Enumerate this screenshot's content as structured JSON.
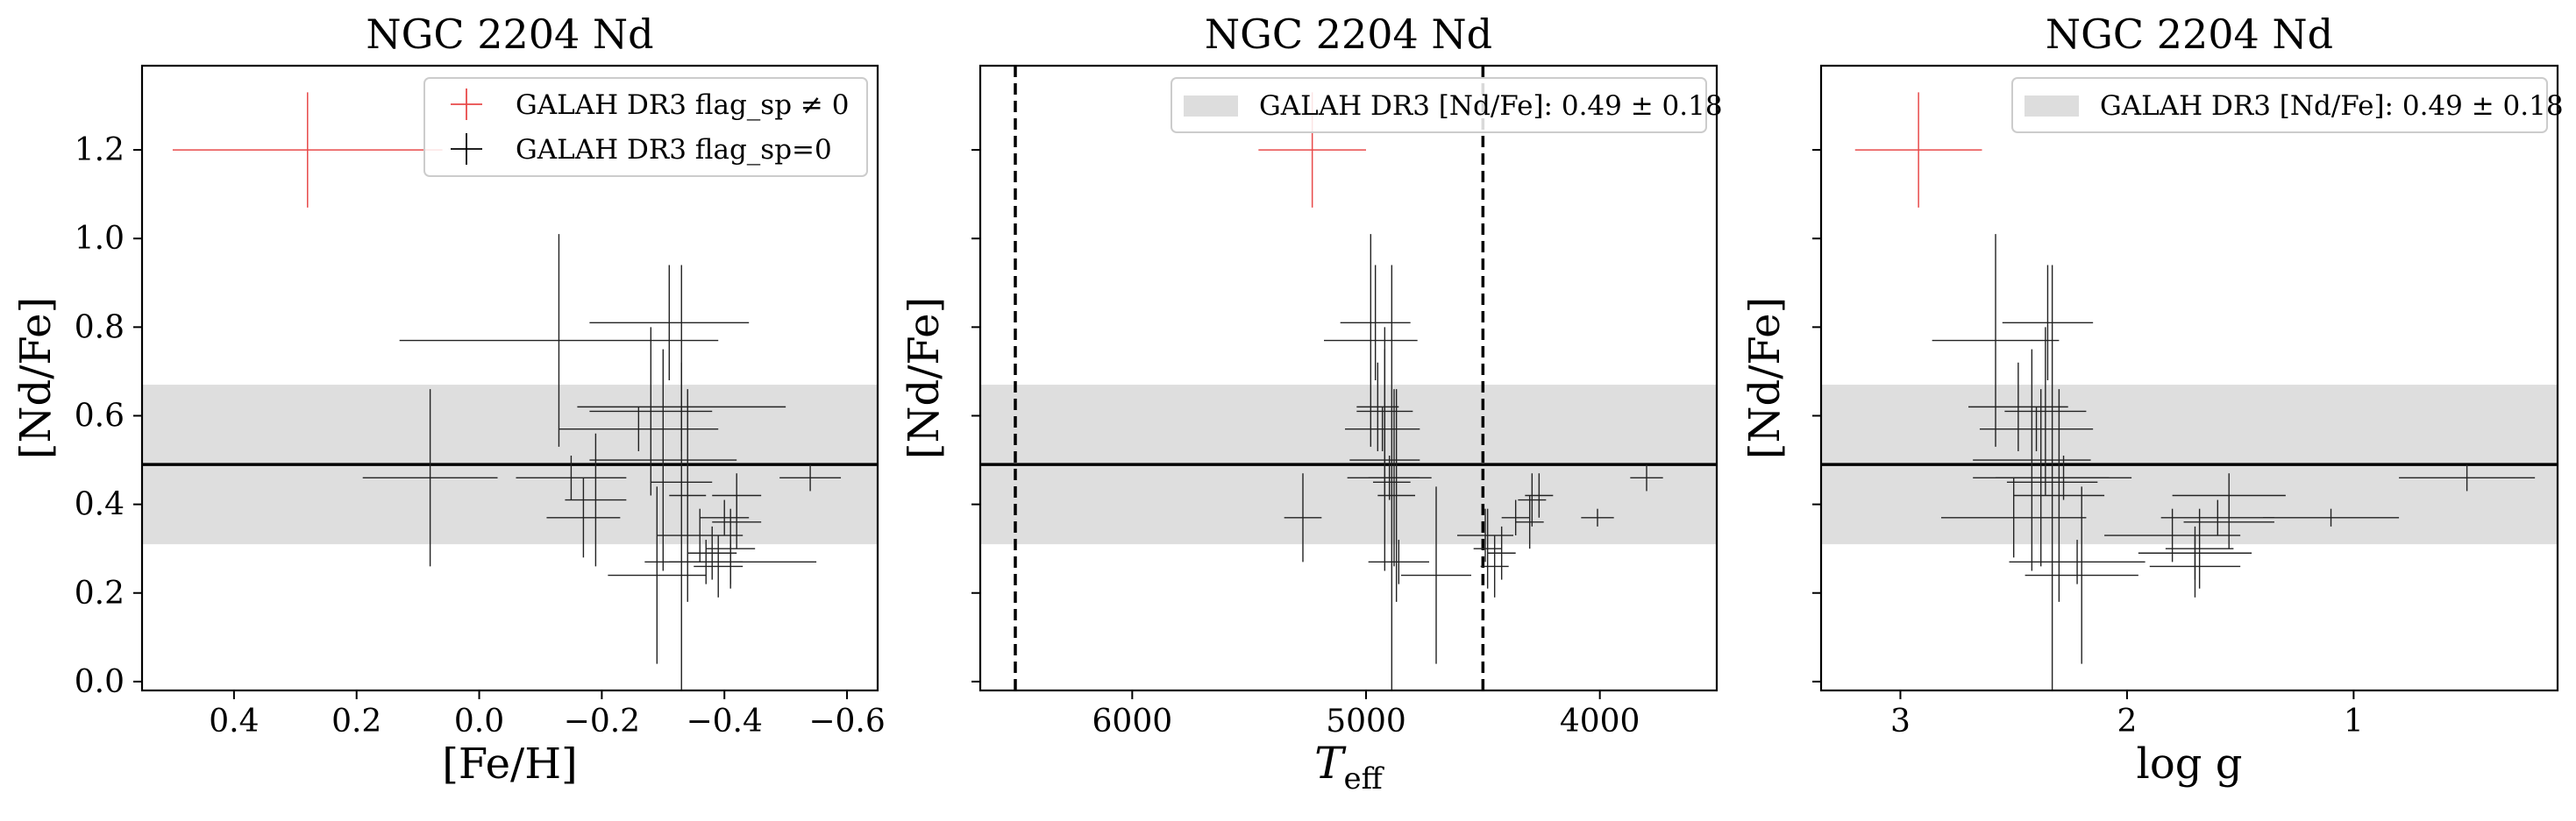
{
  "chart_data": [
    {
      "type": "errorbar-scatter",
      "title": "NGC 2204 Nd",
      "xlabel": "[Fe/H]",
      "ylabel": "[Nd/Fe]",
      "xlim": [
        0.55,
        -0.65
      ],
      "ylim": [
        -0.02,
        1.39
      ],
      "xticks": [
        0.4,
        0.2,
        0.0,
        -0.2,
        -0.4,
        -0.6
      ],
      "xtick_labels": [
        "0.4",
        "0.2",
        "0.0",
        "−0.2",
        "−0.4",
        "−0.6"
      ],
      "yticks": [
        0.0,
        0.2,
        0.4,
        0.6,
        0.8,
        1.0,
        1.2
      ],
      "ytick_labels": [
        "0.0",
        "0.2",
        "0.4",
        "0.6",
        "0.8",
        "1.0",
        "1.2"
      ],
      "show_ytick_labels": true,
      "band": {
        "center": 0.49,
        "sigma": 0.18
      },
      "legend": {
        "position": "top-right",
        "entries": [
          {
            "label": "GALAH DR3 flag_sp ≠ 0",
            "style": "cross",
            "color": "#e84a4a"
          },
          {
            "label": "GALAH DR3 flag_sp=0",
            "style": "cross",
            "color": "#000000"
          }
        ]
      },
      "flagged_points": [
        {
          "x": 0.28,
          "y": 1.2,
          "xerr": 0.22,
          "yerr": 0.13
        }
      ],
      "points": [
        {
          "x": 0.08,
          "y": 0.46,
          "xerr": 0.11,
          "yerr": 0.2
        },
        {
          "x": -0.13,
          "y": 0.77,
          "xerr": 0.26,
          "yerr": 0.24
        },
        {
          "x": -0.15,
          "y": 0.46,
          "xerr": 0.09,
          "yerr": 0.05
        },
        {
          "x": -0.17,
          "y": 0.37,
          "xerr": 0.06,
          "yerr": 0.09
        },
        {
          "x": -0.19,
          "y": 0.41,
          "xerr": 0.05,
          "yerr": 0.15
        },
        {
          "x": -0.26,
          "y": 0.57,
          "xerr": 0.13,
          "yerr": 0.05
        },
        {
          "x": -0.28,
          "y": 0.61,
          "xerr": 0.1,
          "yerr": 0.19
        },
        {
          "x": -0.31,
          "y": 0.81,
          "xerr": 0.13,
          "yerr": 0.13
        },
        {
          "x": -0.33,
          "y": 0.62,
          "xerr": 0.17,
          "yerr": 0.1
        },
        {
          "x": -0.3,
          "y": 0.5,
          "xerr": 0.12,
          "yerr": 0.25
        },
        {
          "x": -0.29,
          "y": 0.24,
          "xerr": 0.08,
          "yerr": 0.2
        },
        {
          "x": -0.33,
          "y": 0.45,
          "xerr": 0.05,
          "yerr": 0.49
        },
        {
          "x": -0.34,
          "y": 0.42,
          "xerr": 0.03,
          "yerr": 0.24
        },
        {
          "x": -0.37,
          "y": 0.27,
          "xerr": 0.06,
          "yerr": 0.05
        },
        {
          "x": -0.36,
          "y": 0.33,
          "xerr": 0.07,
          "yerr": 0.06
        },
        {
          "x": -0.38,
          "y": 0.29,
          "xerr": 0.04,
          "yerr": 0.06
        },
        {
          "x": -0.39,
          "y": 0.26,
          "xerr": 0.04,
          "yerr": 0.07
        },
        {
          "x": -0.4,
          "y": 0.37,
          "xerr": 0.04,
          "yerr": 0.04
        },
        {
          "x": -0.41,
          "y": 0.3,
          "xerr": 0.04,
          "yerr": 0.09
        },
        {
          "x": -0.42,
          "y": 0.36,
          "xerr": 0.04,
          "yerr": 0.06
        },
        {
          "x": -0.42,
          "y": 0.42,
          "xerr": 0.04,
          "yerr": 0.05
        },
        {
          "x": -0.41,
          "y": 0.27,
          "xerr": 0.14,
          "yerr": 0.05
        },
        {
          "x": -0.54,
          "y": 0.46,
          "xerr": 0.05,
          "yerr": 0.03
        }
      ]
    },
    {
      "type": "errorbar-scatter",
      "title": "NGC 2204 Nd",
      "xlabel": "T_eff",
      "ylabel": "[Nd/Fe]",
      "xlim": [
        6650,
        3500
      ],
      "ylim": [
        -0.02,
        1.39
      ],
      "xticks": [
        6000,
        5000,
        4000
      ],
      "xtick_labels": [
        "6000",
        "5000",
        "4000"
      ],
      "yticks": [
        0.0,
        0.2,
        0.4,
        0.6,
        0.8,
        1.0,
        1.2
      ],
      "ytick_labels": [
        "0.0",
        "0.2",
        "0.4",
        "0.6",
        "0.8",
        "1.0",
        "1.2"
      ],
      "show_ytick_labels": false,
      "vlines": [
        6500,
        4500
      ],
      "band": {
        "center": 0.49,
        "sigma": 0.18
      },
      "legend": {
        "position": "top-right",
        "entries": [
          {
            "label": "GALAH DR3 [Nd/Fe]: 0.49 ± 0.18",
            "style": "patch",
            "color": "#dddddd"
          }
        ]
      },
      "flagged_points": [
        {
          "x": 5230,
          "y": 1.2,
          "xerr": 230,
          "yerr": 0.13
        }
      ],
      "points": [
        {
          "x": 5270,
          "y": 0.37,
          "xerr": 80,
          "yerr": 0.1
        },
        {
          "x": 4980,
          "y": 0.77,
          "xerr": 200,
          "yerr": 0.24
        },
        {
          "x": 4960,
          "y": 0.81,
          "xerr": 150,
          "yerr": 0.13
        },
        {
          "x": 4950,
          "y": 0.62,
          "xerr": 90,
          "yerr": 0.1
        },
        {
          "x": 4930,
          "y": 0.57,
          "xerr": 160,
          "yerr": 0.05
        },
        {
          "x": 4920,
          "y": 0.5,
          "xerr": 150,
          "yerr": 0.25
        },
        {
          "x": 4920,
          "y": 0.61,
          "xerr": 120,
          "yerr": 0.19
        },
        {
          "x": 4900,
          "y": 0.46,
          "xerr": 180,
          "yerr": 0.05
        },
        {
          "x": 4890,
          "y": 0.45,
          "xerr": 80,
          "yerr": 0.49
        },
        {
          "x": 4880,
          "y": 0.46,
          "xerr": 110,
          "yerr": 0.2
        },
        {
          "x": 4870,
          "y": 0.42,
          "xerr": 80,
          "yerr": 0.24
        },
        {
          "x": 4860,
          "y": 0.27,
          "xerr": 130,
          "yerr": 0.05
        },
        {
          "x": 4700,
          "y": 0.24,
          "xerr": 150,
          "yerr": 0.2
        },
        {
          "x": 4490,
          "y": 0.33,
          "xerr": 120,
          "yerr": 0.06
        },
        {
          "x": 4480,
          "y": 0.3,
          "xerr": 60,
          "yerr": 0.09
        },
        {
          "x": 4450,
          "y": 0.26,
          "xerr": 60,
          "yerr": 0.07
        },
        {
          "x": 4420,
          "y": 0.29,
          "xerr": 60,
          "yerr": 0.06
        },
        {
          "x": 4360,
          "y": 0.37,
          "xerr": 60,
          "yerr": 0.04
        },
        {
          "x": 4300,
          "y": 0.36,
          "xerr": 60,
          "yerr": 0.06
        },
        {
          "x": 4290,
          "y": 0.41,
          "xerr": 60,
          "yerr": 0.06
        },
        {
          "x": 4260,
          "y": 0.42,
          "xerr": 60,
          "yerr": 0.05
        },
        {
          "x": 4010,
          "y": 0.37,
          "xerr": 70,
          "yerr": 0.02
        },
        {
          "x": 3800,
          "y": 0.46,
          "xerr": 70,
          "yerr": 0.03
        }
      ]
    },
    {
      "type": "errorbar-scatter",
      "title": "NGC 2204 Nd",
      "xlabel": "log g",
      "ylabel": "[Nd/Fe]",
      "xlim": [
        3.35,
        0.1
      ],
      "ylim": [
        -0.02,
        1.39
      ],
      "xticks": [
        3,
        2,
        1
      ],
      "xtick_labels": [
        "3",
        "2",
        "1"
      ],
      "yticks": [
        0.0,
        0.2,
        0.4,
        0.6,
        0.8,
        1.0,
        1.2
      ],
      "ytick_labels": [
        "0.0",
        "0.2",
        "0.4",
        "0.6",
        "0.8",
        "1.0",
        "1.2"
      ],
      "show_ytick_labels": false,
      "band": {
        "center": 0.49,
        "sigma": 0.18
      },
      "legend": {
        "position": "top-right",
        "entries": [
          {
            "label": "GALAH DR3 [Nd/Fe]: 0.49 ± 0.18",
            "style": "patch",
            "color": "#dddddd"
          }
        ]
      },
      "flagged_points": [
        {
          "x": 2.92,
          "y": 1.2,
          "xerr": 0.28,
          "yerr": 0.13
        }
      ],
      "points": [
        {
          "x": 2.58,
          "y": 0.77,
          "xerr": 0.28,
          "yerr": 0.24
        },
        {
          "x": 2.5,
          "y": 0.37,
          "xerr": 0.32,
          "yerr": 0.09
        },
        {
          "x": 2.48,
          "y": 0.62,
          "xerr": 0.22,
          "yerr": 0.1
        },
        {
          "x": 2.42,
          "y": 0.5,
          "xerr": 0.26,
          "yerr": 0.25
        },
        {
          "x": 2.4,
          "y": 0.57,
          "xerr": 0.25,
          "yerr": 0.05
        },
        {
          "x": 2.38,
          "y": 0.46,
          "xerr": 0.3,
          "yerr": 0.2
        },
        {
          "x": 2.36,
          "y": 0.61,
          "xerr": 0.18,
          "yerr": 0.19
        },
        {
          "x": 2.35,
          "y": 0.81,
          "xerr": 0.2,
          "yerr": 0.13
        },
        {
          "x": 2.33,
          "y": 0.45,
          "xerr": 0.2,
          "yerr": 0.49
        },
        {
          "x": 2.3,
          "y": 0.42,
          "xerr": 0.2,
          "yerr": 0.24
        },
        {
          "x": 2.28,
          "y": 0.46,
          "xerr": 0.3,
          "yerr": 0.05
        },
        {
          "x": 2.22,
          "y": 0.27,
          "xerr": 0.3,
          "yerr": 0.05
        },
        {
          "x": 2.2,
          "y": 0.24,
          "xerr": 0.25,
          "yerr": 0.2
        },
        {
          "x": 1.8,
          "y": 0.33,
          "xerr": 0.3,
          "yerr": 0.06
        },
        {
          "x": 1.7,
          "y": 0.29,
          "xerr": 0.25,
          "yerr": 0.06
        },
        {
          "x": 1.7,
          "y": 0.26,
          "xerr": 0.2,
          "yerr": 0.07
        },
        {
          "x": 1.68,
          "y": 0.3,
          "xerr": 0.15,
          "yerr": 0.09
        },
        {
          "x": 1.6,
          "y": 0.37,
          "xerr": 0.25,
          "yerr": 0.04
        },
        {
          "x": 1.55,
          "y": 0.42,
          "xerr": 0.25,
          "yerr": 0.05
        },
        {
          "x": 1.55,
          "y": 0.36,
          "xerr": 0.2,
          "yerr": 0.06
        },
        {
          "x": 1.1,
          "y": 0.37,
          "xerr": 0.3,
          "yerr": 0.02
        },
        {
          "x": 0.5,
          "y": 0.46,
          "xerr": 0.3,
          "yerr": 0.03
        }
      ]
    }
  ]
}
